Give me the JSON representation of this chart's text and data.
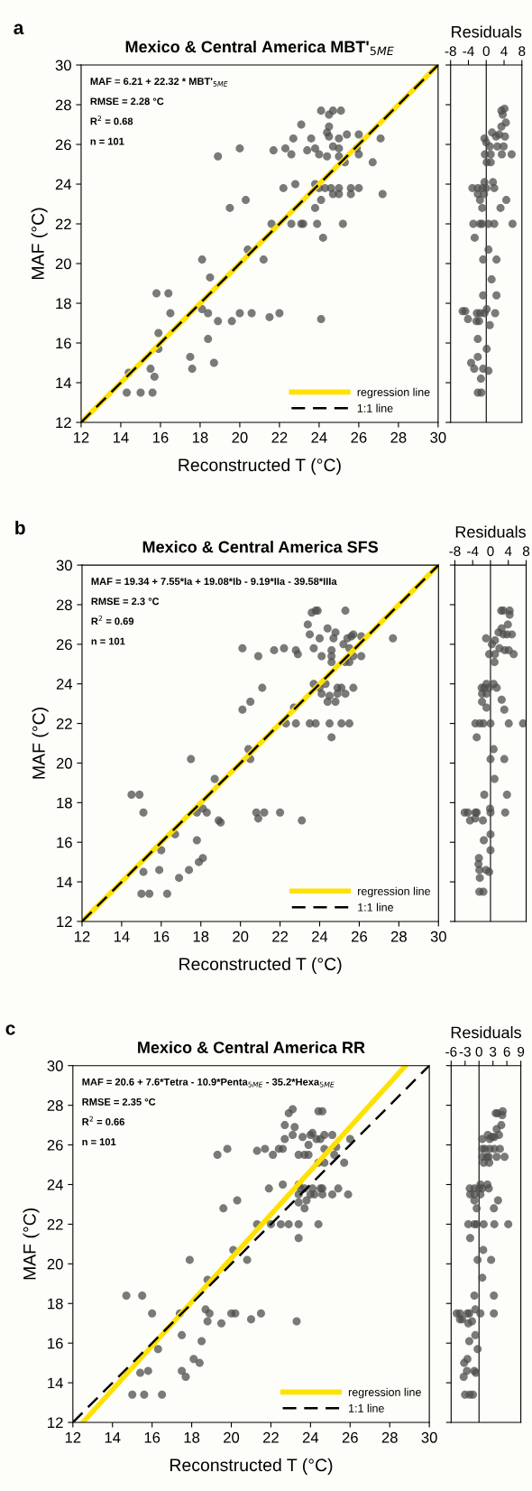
{
  "chart_data": [
    {
      "type": "scatter",
      "title": "Mexico & Central America MBT'$_{5ME}$",
      "xlabel": "Reconstructed T (°C)",
      "ylabel": "MAF (°C)",
      "annotations": [
        "a",
        "MAF = 6.21 + 22.32 * MBT'$_{5ME}$",
        "RMSE = 2.28 °C",
        "R$^{2}$ = 0.68",
        "n = 101"
      ],
      "xlim": [
        12,
        30
      ],
      "ylim": [
        12,
        30
      ],
      "xticks": [
        12,
        14,
        16,
        18,
        20,
        22,
        24,
        26,
        28,
        30
      ],
      "yticks": [
        12,
        14,
        16,
        18,
        20,
        22,
        24,
        26,
        28,
        30
      ],
      "grid": false,
      "legend": "bottom right",
      "series": [
        {
          "type": "scatter",
          "marker": "circle",
          "color": "#4d4d4d",
          "x": [
            24.1,
            24.5,
            24.7,
            25.1,
            23.1,
            24.5,
            22.7,
            23.6,
            24.4,
            24.5,
            25.0,
            25.4,
            26.0,
            27.1,
            20.0,
            18.9,
            21.7,
            22.3,
            22.6,
            23.4,
            23.8,
            24.0,
            24.4,
            24.7,
            25.0,
            25.0,
            25.3,
            25.9,
            26.0,
            26.7,
            22.2,
            22.8,
            23.8,
            24.0,
            24.3,
            24.6,
            24.7,
            25.0,
            25.0,
            25.6,
            25.6,
            26.0,
            27.2,
            20.3,
            19.5,
            24.1,
            23.8,
            21.6,
            22.6,
            23.1,
            23.2,
            23.9,
            25.2,
            24.2,
            20.4,
            21.2,
            18.1,
            18.5,
            15.8,
            16.4,
            16.5,
            18.1,
            18.4,
            18.9,
            19.6,
            20.0,
            20.6,
            21.5,
            22.0,
            24.1,
            15.9,
            15.9,
            18.4,
            17.5,
            17.6,
            18.7,
            15.5,
            15.7,
            14.4,
            14.3,
            15.0,
            15.6
          ],
          "values": [
            27.7,
            27.5,
            27.7,
            27.7,
            27.0,
            26.9,
            26.3,
            26.3,
            26.6,
            26.4,
            26.3,
            26.5,
            26.5,
            26.3,
            25.8,
            25.4,
            25.7,
            25.8,
            25.5,
            25.7,
            25.8,
            25.5,
            25.4,
            25.9,
            25.4,
            25.8,
            25.1,
            25.8,
            25.5,
            25.1,
            23.8,
            24.0,
            24.0,
            23.8,
            23.8,
            23.8,
            23.5,
            23.8,
            23.5,
            23.8,
            23.5,
            23.8,
            23.5,
            23.2,
            22.8,
            23.2,
            22.8,
            22.0,
            22.0,
            22.0,
            22.0,
            22.0,
            22.0,
            21.3,
            20.7,
            20.2,
            20.2,
            19.3,
            18.5,
            18.5,
            17.5,
            17.7,
            17.5,
            17.1,
            17.1,
            17.5,
            17.5,
            17.3,
            17.5,
            17.2,
            16.5,
            15.7,
            16.2,
            15.3,
            14.7,
            15.0,
            14.7,
            14.3,
            14.5,
            13.5,
            13.5,
            13.5
          ]
        },
        {
          "type": "line",
          "name": "regression line",
          "color": "#ffe100",
          "x": [
            12,
            30
          ],
          "values": [
            12,
            30
          ]
        },
        {
          "type": "line",
          "name": "1:1 line",
          "color": "#000000",
          "line_style": "dashed",
          "x": [
            12,
            30
          ],
          "values": [
            12,
            30
          ]
        }
      ]
    },
    {
      "type": "scatter",
      "title": "Residuals",
      "xlim": [
        -8,
        8
      ],
      "ylim": [
        12,
        30
      ],
      "xticks": [
        -8,
        -4,
        0,
        4,
        8
      ],
      "yticks": [
        {
          "value": 12,
          "label": null
        },
        {
          "value": 14,
          "label": null
        },
        {
          "value": 16,
          "label": null
        },
        {
          "value": 18,
          "label": null
        },
        {
          "value": 20,
          "label": null
        },
        {
          "value": 22,
          "label": null
        },
        {
          "value": 24,
          "label": null
        },
        {
          "value": 26,
          "label": null
        },
        {
          "value": 28,
          "label": null
        },
        {
          "value": 30,
          "label": null
        }
      ],
      "tick_labels": "x",
      "grid": false,
      "ref_lines": [
        {
          "axis": "x",
          "value": 0,
          "color": "#000000"
        }
      ],
      "series": [
        {
          "type": "scatter",
          "marker": "circle",
          "color": "#4d4d4d",
          "x": [
            3.4,
            4.1,
            3.7,
            4.4,
            3.4,
            1.3,
            2.2,
            2.9,
            4.2,
            -0.4,
            0.0,
            0.8,
            2.5,
            3.9,
            -0.3,
            1.0,
            3.5,
            5.7,
            0.1,
            1.0,
            -0.4,
            1.5,
            -3.1,
            -1.9,
            -0.9,
            0.0,
            1.8,
            -1.9,
            -0.5,
            -1.4,
            4.5,
            3.2,
            -0.9,
            -2.9,
            -1.4,
            -0.9,
            0.5,
            1.8,
            5.9,
            -2.6,
            0.5,
            -0.7,
            2.3,
            1.2,
            -0.7,
            2.3,
            0.1,
            -0.4,
            -5.3,
            -4.7,
            -2.1,
            -1.4,
            2.0,
            -4.1,
            -2.2,
            -1.6,
            0.8,
            -1.9,
            0.1,
            -1.9,
            -3.4,
            -2.7,
            -0.7,
            0.5,
            -1.2,
            -1.9,
            -1.1
          ],
          "values": [
            27.7,
            27.8,
            27.5,
            27.1,
            26.9,
            26.6,
            26.4,
            26.5,
            26.4,
            26.3,
            26.1,
            25.9,
            25.9,
            25.9,
            25.5,
            25.5,
            25.5,
            25.5,
            25.1,
            25.1,
            24.1,
            24.1,
            23.8,
            23.8,
            23.8,
            23.8,
            23.8,
            23.5,
            23.5,
            23.2,
            23.2,
            22.8,
            22.8,
            22.0,
            22.0,
            22.0,
            22.0,
            22.0,
            22.0,
            21.3,
            20.7,
            20.2,
            20.2,
            19.2,
            18.4,
            18.4,
            17.7,
            17.5,
            17.6,
            17.6,
            17.5,
            17.5,
            17.5,
            17.2,
            17.1,
            17.1,
            16.9,
            16.2,
            15.7,
            15.3,
            15.0,
            14.7,
            14.7,
            14.6,
            14.2,
            13.5,
            13.5
          ]
        }
      ]
    },
    {
      "type": "scatter",
      "title": "Mexico & Central America SFS",
      "xlabel": "Reconstructed T (°C)",
      "ylabel": "MAF (°C)",
      "annotations": [
        "b",
        "MAF = 19.34 + 7.55*Ia + 19.08*Ib - 9.19*IIa - 39.58*IIIa",
        "RMSE = 2.3 °C",
        "R$^{2}$ = 0.69",
        "n = 101"
      ],
      "xlim": [
        12,
        30
      ],
      "ylim": [
        12,
        30
      ],
      "xticks": [
        12,
        14,
        16,
        18,
        20,
        22,
        24,
        26,
        28,
        30
      ],
      "yticks": [
        12,
        14,
        16,
        18,
        20,
        22,
        24,
        26,
        28,
        30
      ],
      "grid": false,
      "legend": "bottom right",
      "series": [
        {
          "type": "scatter",
          "marker": "circle",
          "color": "#4d4d4d",
          "x": [
            23.9,
            23.6,
            23.8,
            25.3,
            23.4,
            24.4,
            23.5,
            24.0,
            24.8,
            24.7,
            25.4,
            25.6,
            25.7,
            26.1,
            27.7,
            25.2,
            20.1,
            20.9,
            21.7,
            22.2,
            22.8,
            22.9,
            23.7,
            24.1,
            24.6,
            24.6,
            24.6,
            25.3,
            25.5,
            25.5,
            25.7,
            26.1,
            23.7,
            24.0,
            24.3,
            24.1,
            24.5,
            24.9,
            25.1,
            24.9,
            25.3,
            25.7,
            24.4,
            24.8,
            21.1,
            20.5,
            20.1,
            22.7,
            22.3,
            22.8,
            23.5,
            23.8,
            24.5,
            25.1,
            25.5,
            24.6,
            20.4,
            20.5,
            17.5,
            18.7,
            14.5,
            14.9,
            15.1,
            17.8,
            18.1,
            18.3,
            18.9,
            19.0,
            20.8,
            20.9,
            21.2,
            22.0,
            23.1,
            16.7,
            17.8,
            16.0,
            18.1,
            17.9,
            17.4,
            15.9,
            15.1,
            16.9,
            15.0,
            15.4,
            16.3
          ],
          "values": [
            27.7,
            27.6,
            27.7,
            27.7,
            27.0,
            26.8,
            26.5,
            26.3,
            26.6,
            26.3,
            26.3,
            26.4,
            26.5,
            26.4,
            26.3,
            26.0,
            25.8,
            25.4,
            25.7,
            25.8,
            25.7,
            25.5,
            25.8,
            25.4,
            25.7,
            25.4,
            25.1,
            25.1,
            25.1,
            25.8,
            25.4,
            25.4,
            24.0,
            23.8,
            24.0,
            23.5,
            23.4,
            23.8,
            23.8,
            23.5,
            23.5,
            23.8,
            23.1,
            23.1,
            23.8,
            23.1,
            22.7,
            22.8,
            22.0,
            22.0,
            22.0,
            22.0,
            22.0,
            22.0,
            22.0,
            21.3,
            20.7,
            20.2,
            20.2,
            19.2,
            18.4,
            18.4,
            17.5,
            17.5,
            17.7,
            17.5,
            17.1,
            17.0,
            17.5,
            17.2,
            17.5,
            17.5,
            17.1,
            16.4,
            16.1,
            15.6,
            15.2,
            15.0,
            14.6,
            14.6,
            14.5,
            14.2,
            13.4,
            13.4,
            13.4
          ]
        },
        {
          "type": "line",
          "name": "regression line",
          "color": "#ffe100",
          "x": [
            12,
            30
          ],
          "values": [
            12,
            30
          ]
        },
        {
          "type": "line",
          "name": "1:1 line",
          "color": "#000000",
          "line_style": "dashed",
          "x": [
            12,
            30
          ],
          "values": [
            12,
            30
          ]
        }
      ]
    },
    {
      "type": "scatter",
      "title": "Residuals",
      "xlim": [
        -8,
        8
      ],
      "ylim": [
        12,
        30
      ],
      "xticks": [
        -8,
        -4,
        0,
        4,
        8
      ],
      "yticks": [
        {
          "value": 12,
          "label": null
        },
        {
          "value": 14,
          "label": null
        },
        {
          "value": 16,
          "label": null
        },
        {
          "value": 18,
          "label": null
        },
        {
          "value": 20,
          "label": null
        },
        {
          "value": 22,
          "label": null
        },
        {
          "value": 24,
          "label": null
        },
        {
          "value": 26,
          "label": null
        },
        {
          "value": 28,
          "label": null
        },
        {
          "value": 30,
          "label": null
        }
      ],
      "tick_labels": "x",
      "grid": false,
      "ref_lines": [
        {
          "axis": "x",
          "value": 0,
          "color": "#000000"
        }
      ],
      "series": [
        {
          "type": "scatter",
          "marker": "circle",
          "color": "#4d4d4d",
          "x": [
            2.4,
            2.9,
            4.3,
            4.3,
            3.9,
            2.5,
            1.8,
            2.9,
            3.7,
            4.8,
            -1.0,
            1.0,
            0.3,
            2.0,
            3.2,
            4.1,
            5.2,
            -0.3,
            1.0,
            0.9,
            -0.9,
            0.7,
            -2.0,
            -1.4,
            -0.3,
            1.4,
            -1.9,
            -0.9,
            -1.9,
            2.5,
            -0.9,
            3.1,
            -3.4,
            -2.4,
            -1.6,
            0.0,
            4.1,
            7.3,
            -3.1,
            0.7,
            0.0,
            3.1,
            0.9,
            -1.4,
            3.7,
            -0.1,
            0.0,
            -5.8,
            -5.1,
            -3.4,
            -3.1,
            3.3,
            -4.6,
            -3.4,
            -1.7,
            0.0,
            -1.5,
            0.0,
            -2.6,
            -2.7,
            -2.5,
            -1.0,
            -0.3,
            -2.4,
            -2.5,
            -1.6
          ],
          "values": [
            27.7,
            27.7,
            27.7,
            27.5,
            27.0,
            26.8,
            26.6,
            26.5,
            26.5,
            26.5,
            26.3,
            26.2,
            26.0,
            25.8,
            25.7,
            25.7,
            25.5,
            25.5,
            25.5,
            25.1,
            24.0,
            24.0,
            23.8,
            23.8,
            23.8,
            23.8,
            23.5,
            23.5,
            23.1,
            23.2,
            22.8,
            22.7,
            22.0,
            22.0,
            22.0,
            22.0,
            22.0,
            22.0,
            21.3,
            20.7,
            20.2,
            20.2,
            19.2,
            18.4,
            18.4,
            17.7,
            17.5,
            17.5,
            17.5,
            17.5,
            17.5,
            17.5,
            17.1,
            17.2,
            17.1,
            16.4,
            16.1,
            15.6,
            15.2,
            14.9,
            14.6,
            14.6,
            14.5,
            14.2,
            13.5,
            13.5
          ]
        }
      ]
    },
    {
      "type": "scatter",
      "title": "Mexico & Central America RR",
      "xlabel": "Reconstructed T (°C)",
      "ylabel": "MAF (°C)",
      "annotations": [
        "c",
        "MAF = 20.6 + 7.6*Tetra - 10.9*Penta$_{5ME}$ - 35.2*Hexa$_{5ME}$",
        "RMSE = 2.35 °C",
        "R$^{2}$ = 0.66",
        "n = 101"
      ],
      "xlim": [
        12,
        30
      ],
      "ylim": [
        12,
        30
      ],
      "xticks": [
        12,
        14,
        16,
        18,
        20,
        22,
        24,
        26,
        28,
        30
      ],
      "yticks": [
        12,
        14,
        16,
        18,
        20,
        22,
        24,
        26,
        28,
        30
      ],
      "grid": false,
      "legend": "bottom right",
      "series": [
        {
          "type": "scatter",
          "marker": "circle",
          "color": "#4d4d4d",
          "x": [
            23.1,
            22.9,
            24.4,
            24.6,
            22.7,
            23.2,
            23.1,
            22.7,
            23.6,
            24.0,
            24.1,
            24.3,
            24.5,
            24.7,
            25.1,
            26.0,
            23.9,
            19.8,
            19.3,
            21.3,
            21.7,
            22.1,
            22.4,
            22.6,
            23.4,
            23.7,
            23.9,
            24.7,
            25.3,
            25.2,
            24.4,
            24.7,
            25.7,
            22.6,
            23.4,
            21.9,
            23.5,
            23.7,
            24.1,
            24.5,
            24.6,
            23.4,
            24.0,
            24.2,
            24.6,
            25.1,
            25.4,
            25.9,
            23.4,
            23.8,
            23.7,
            20.3,
            19.6,
            21.3,
            22.0,
            22.5,
            22.9,
            23.4,
            24.4,
            23.4,
            20.1,
            20.8,
            17.9,
            18.8,
            14.7,
            15.5,
            16.0,
            17.4,
            18.7,
            18.9,
            18.8,
            19.5,
            20.0,
            20.2,
            21.0,
            21.5,
            23.3,
            17.5,
            18.5,
            16.3,
            18.1,
            18.4,
            15.8,
            15.4,
            17.5,
            17.7,
            15.0,
            15.6,
            16.5
          ],
          "values": [
            27.8,
            27.6,
            27.7,
            27.7,
            27.0,
            26.9,
            26.5,
            26.3,
            26.4,
            26.5,
            26.6,
            26.3,
            26.3,
            26.5,
            26.5,
            26.3,
            26.0,
            25.8,
            25.5,
            25.7,
            25.8,
            25.5,
            25.8,
            25.8,
            25.5,
            25.5,
            25.5,
            25.8,
            25.9,
            25.5,
            25.1,
            25.1,
            25.1,
            24.0,
            24.0,
            23.8,
            23.8,
            23.8,
            23.8,
            23.8,
            23.8,
            23.5,
            23.5,
            23.5,
            23.5,
            23.5,
            23.8,
            23.5,
            23.1,
            23.2,
            22.8,
            23.2,
            22.8,
            22.0,
            22.0,
            22.0,
            22.0,
            22.0,
            22.0,
            21.3,
            20.7,
            20.2,
            20.2,
            19.2,
            18.4,
            18.4,
            17.5,
            17.5,
            17.7,
            17.5,
            17.1,
            17.0,
            17.5,
            17.5,
            17.2,
            17.5,
            17.1,
            16.4,
            16.1,
            15.7,
            15.2,
            15.0,
            14.6,
            14.5,
            14.6,
            14.3,
            13.4,
            13.4,
            13.4
          ]
        },
        {
          "type": "line",
          "name": "regression line",
          "color": "#ffe100",
          "x": [
            12.5,
            28.8
          ],
          "values": [
            12,
            30
          ]
        },
        {
          "type": "line",
          "name": "1:1 line",
          "color": "#000000",
          "line_style": "dashed",
          "x": [
            12,
            30
          ],
          "values": [
            12,
            30
          ]
        }
      ]
    },
    {
      "type": "scatter",
      "title": "Residuals",
      "xlim": [
        -6,
        9
      ],
      "ylim": [
        12,
        30
      ],
      "xticks": [
        -6,
        -3,
        0,
        3,
        6,
        9
      ],
      "yticks": [
        {
          "value": 12,
          "label": null
        },
        {
          "value": 14,
          "label": null
        },
        {
          "value": 16,
          "label": null
        },
        {
          "value": 18,
          "label": null
        },
        {
          "value": 20,
          "label": null
        },
        {
          "value": 22,
          "label": null
        },
        {
          "value": 24,
          "label": null
        },
        {
          "value": 26,
          "label": null
        },
        {
          "value": 28,
          "label": null
        },
        {
          "value": 30,
          "label": null
        }
      ],
      "tick_labels": "x",
      "grid": false,
      "ref_lines": [
        {
          "axis": "x",
          "value": 0,
          "color": "#000000"
        }
      ],
      "series": [
        {
          "type": "scatter",
          "marker": "circle",
          "color": "#4d4d4d",
          "x": [
            3.6,
            4.0,
            5.1,
            5.0,
            4.8,
            3.8,
            1.9,
            2.3,
            2.8,
            3.3,
            4.3,
            0.7,
            0.7,
            1.3,
            2.3,
            3.3,
            4.5,
            0.7,
            1.7,
            2.1,
            3.8,
            5.5,
            1.0,
            2.2,
            0.3,
            1.8,
            -2.0,
            -1.0,
            0.0,
            0.7,
            2.1,
            -1.9,
            -1.0,
            0.3,
            -1.0,
            4.1,
            -0.5,
            3.2,
            -2.3,
            -1.0,
            -0.5,
            1.0,
            3.3,
            6.3,
            -1.9,
            0.9,
            -0.3,
            2.6,
            0.7,
            -1.0,
            3.2,
            -0.8,
            0.3,
            3.2,
            -4.8,
            -4.1,
            -2.5,
            -2.1,
            -3.6,
            -4.1,
            -2.3,
            -1.5,
            -0.8,
            -2.1,
            -0.3,
            -2.5,
            -3.2,
            -2.6,
            -1.0,
            -0.7,
            -3.3,
            -3.0,
            -2.0,
            -1.3
          ],
          "values": [
            27.6,
            27.6,
            27.7,
            27.5,
            27.0,
            26.8,
            26.5,
            26.3,
            26.4,
            26.4,
            26.5,
            26.3,
            25.8,
            25.8,
            25.8,
            25.8,
            25.8,
            25.4,
            25.4,
            25.4,
            25.4,
            25.4,
            25.1,
            25.1,
            24.0,
            24.0,
            23.8,
            23.8,
            23.8,
            23.8,
            23.8,
            23.5,
            23.5,
            23.5,
            23.2,
            23.2,
            22.8,
            22.8,
            22.0,
            22.0,
            22.0,
            22.0,
            22.0,
            22.0,
            21.3,
            20.7,
            20.2,
            20.2,
            19.3,
            18.4,
            18.4,
            17.7,
            17.5,
            17.5,
            17.5,
            17.5,
            17.5,
            17.5,
            17.2,
            17.2,
            17.0,
            17.1,
            16.4,
            16.1,
            15.7,
            15.2,
            15.0,
            14.6,
            14.6,
            14.5,
            14.3,
            13.4,
            13.4,
            13.4
          ]
        }
      ]
    }
  ]
}
